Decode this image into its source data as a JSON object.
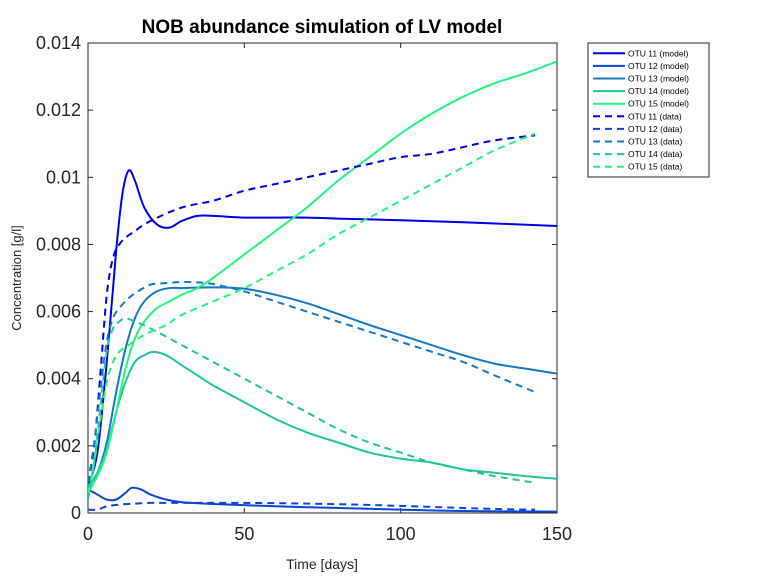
{
  "chart_data": {
    "type": "line",
    "title": "NOB abundance simulation of LV model",
    "xlabel": "Time [days]",
    "ylabel": "Concentration [g/l]",
    "xlim": [
      0,
      150
    ],
    "ylim": [
      0,
      0.014
    ],
    "xticks": [
      0,
      50,
      100,
      150
    ],
    "yticks": [
      0,
      0.002,
      0.004,
      0.006,
      0.008,
      0.01,
      0.012,
      0.014
    ],
    "xtick_labels": [
      "0",
      "50",
      "100",
      "150"
    ],
    "ytick_labels": [
      "0",
      "0.002",
      "0.004",
      "0.006",
      "0.008",
      "0.01",
      "0.012",
      "0.014"
    ],
    "grid": false,
    "legend_position": "top-right",
    "series": [
      {
        "name": "OTU 11 (model)",
        "color": "#0000e6",
        "style": "solid",
        "x": [
          0,
          3,
          6,
          9,
          11,
          13,
          15,
          18,
          22,
          26,
          30,
          35,
          40,
          50,
          60,
          70,
          80,
          100,
          120,
          150
        ],
        "y": [
          0.0008,
          0.0018,
          0.0045,
          0.0078,
          0.0095,
          0.0102,
          0.0099,
          0.0091,
          0.0086,
          0.0085,
          0.0087,
          0.00885,
          0.00885,
          0.0088,
          0.0088,
          0.0088,
          0.00877,
          0.00872,
          0.00866,
          0.00855
        ]
      },
      {
        "name": "OTU 12 (model)",
        "color": "#0a47d6",
        "style": "solid",
        "x": [
          0,
          3,
          6,
          9,
          12,
          14,
          17,
          20,
          25,
          30,
          40,
          60,
          80,
          100,
          120,
          150
        ],
        "y": [
          0.0007,
          0.00055,
          0.0004,
          0.0004,
          0.0006,
          0.00075,
          0.0007,
          0.00055,
          0.0004,
          0.00032,
          0.00027,
          0.0002,
          0.00015,
          0.0001,
          6e-05,
          4e-05
        ]
      },
      {
        "name": "OTU 13 (model)",
        "color": "#137bc4",
        "style": "solid",
        "x": [
          0,
          3,
          6,
          9,
          12,
          15,
          18,
          22,
          26,
          30,
          40,
          50,
          60,
          70,
          80,
          90,
          100,
          110,
          120,
          130,
          140,
          150
        ],
        "y": [
          0.0008,
          0.0012,
          0.0021,
          0.0036,
          0.0049,
          0.0058,
          0.0063,
          0.0066,
          0.0067,
          0.0067,
          0.00672,
          0.00668,
          0.0065,
          0.00625,
          0.00593,
          0.0056,
          0.0053,
          0.005,
          0.0047,
          0.00445,
          0.0043,
          0.00415
        ]
      },
      {
        "name": "OTU 14 (model)",
        "color": "#1ec69a",
        "style": "solid",
        "x": [
          0,
          3,
          6,
          9,
          12,
          15,
          18,
          21,
          25,
          30,
          35,
          40,
          50,
          60,
          70,
          80,
          90,
          100,
          110,
          120,
          130,
          140,
          150
        ],
        "y": [
          0.0008,
          0.0012,
          0.0019,
          0.003,
          0.0039,
          0.0045,
          0.0047,
          0.0048,
          0.0047,
          0.0044,
          0.0041,
          0.0038,
          0.0033,
          0.0028,
          0.0024,
          0.0021,
          0.0018,
          0.00162,
          0.0015,
          0.0013,
          0.0012,
          0.0011,
          0.00102
        ]
      },
      {
        "name": "OTU 15 (model)",
        "color": "#23f57f",
        "style": "solid",
        "x": [
          0,
          3,
          6,
          9,
          12,
          15,
          18,
          22,
          26,
          30,
          35,
          40,
          50,
          60,
          70,
          80,
          90,
          100,
          110,
          120,
          130,
          140,
          150
        ],
        "y": [
          0.0006,
          0.0011,
          0.0018,
          0.003,
          0.0043,
          0.0052,
          0.0057,
          0.0061,
          0.0063,
          0.0065,
          0.0067,
          0.007,
          0.0077,
          0.0084,
          0.0091,
          0.0099,
          0.0106,
          0.0113,
          0.0119,
          0.0124,
          0.0128,
          0.0131,
          0.01345
        ]
      },
      {
        "name": "OTU 11 (data)",
        "color": "#0000e6",
        "style": "dashed",
        "x": [
          0,
          2,
          4,
          6,
          8,
          10,
          12,
          15,
          20,
          30,
          40,
          50,
          60,
          70,
          80,
          90,
          100,
          110,
          120,
          130,
          143
        ],
        "y": [
          0.0009,
          0.002,
          0.0042,
          0.0065,
          0.0076,
          0.008,
          0.0082,
          0.0084,
          0.0087,
          0.0091,
          0.0093,
          0.0096,
          0.0098,
          0.01,
          0.0102,
          0.0104,
          0.0106,
          0.0107,
          0.0109,
          0.0111,
          0.01125
        ]
      },
      {
        "name": "OTU 12 (data)",
        "color": "#0a47d6",
        "style": "dashed",
        "x": [
          0,
          3,
          6,
          10,
          15,
          20,
          30,
          50,
          70,
          90,
          110,
          130,
          143
        ],
        "y": [
          0.0001,
          0.0001,
          0.0002,
          0.00025,
          0.00028,
          0.0003,
          0.0003,
          0.0003,
          0.00028,
          0.00024,
          0.00018,
          0.00012,
          0.0001
        ]
      },
      {
        "name": "OTU 13 (data)",
        "color": "#137bc4",
        "style": "dashed",
        "x": [
          0,
          2,
          4,
          6,
          8,
          10,
          13,
          16,
          20,
          25,
          30,
          35,
          40,
          50,
          60,
          70,
          80,
          90,
          100,
          110,
          120,
          130,
          143
        ],
        "y": [
          0.0009,
          0.0021,
          0.0037,
          0.0051,
          0.0058,
          0.0061,
          0.0064,
          0.0066,
          0.0068,
          0.00685,
          0.00688,
          0.00687,
          0.00682,
          0.0066,
          0.0063,
          0.006,
          0.0057,
          0.0054,
          0.0051,
          0.0048,
          0.0045,
          0.0041,
          0.0036
        ]
      },
      {
        "name": "OTU 14 (data)",
        "color": "#1ec69a",
        "style": "dashed",
        "x": [
          0,
          2,
          4,
          6,
          8,
          10,
          12,
          15,
          20,
          30,
          40,
          50,
          60,
          70,
          80,
          90,
          100,
          110,
          120,
          130,
          143
        ],
        "y": [
          0.0004,
          0.0015,
          0.0032,
          0.0048,
          0.0055,
          0.0057,
          0.0058,
          0.0057,
          0.0055,
          0.005,
          0.0045,
          0.004,
          0.0035,
          0.003,
          0.0025,
          0.0021,
          0.0018,
          0.0015,
          0.0013,
          0.0011,
          0.0009
        ]
      },
      {
        "name": "OTU 15 (data)",
        "color": "#23f57f",
        "style": "dashed",
        "x": [
          0,
          2,
          4,
          6,
          8,
          10,
          13,
          16,
          20,
          25,
          30,
          40,
          50,
          60,
          70,
          80,
          90,
          100,
          110,
          120,
          130,
          143
        ],
        "y": [
          0.0006,
          0.0015,
          0.0028,
          0.0039,
          0.0045,
          0.0048,
          0.005,
          0.0052,
          0.0054,
          0.0056,
          0.0059,
          0.0063,
          0.0067,
          0.0072,
          0.0077,
          0.0083,
          0.0088,
          0.0093,
          0.0098,
          0.0103,
          0.0108,
          0.0113
        ]
      }
    ]
  }
}
